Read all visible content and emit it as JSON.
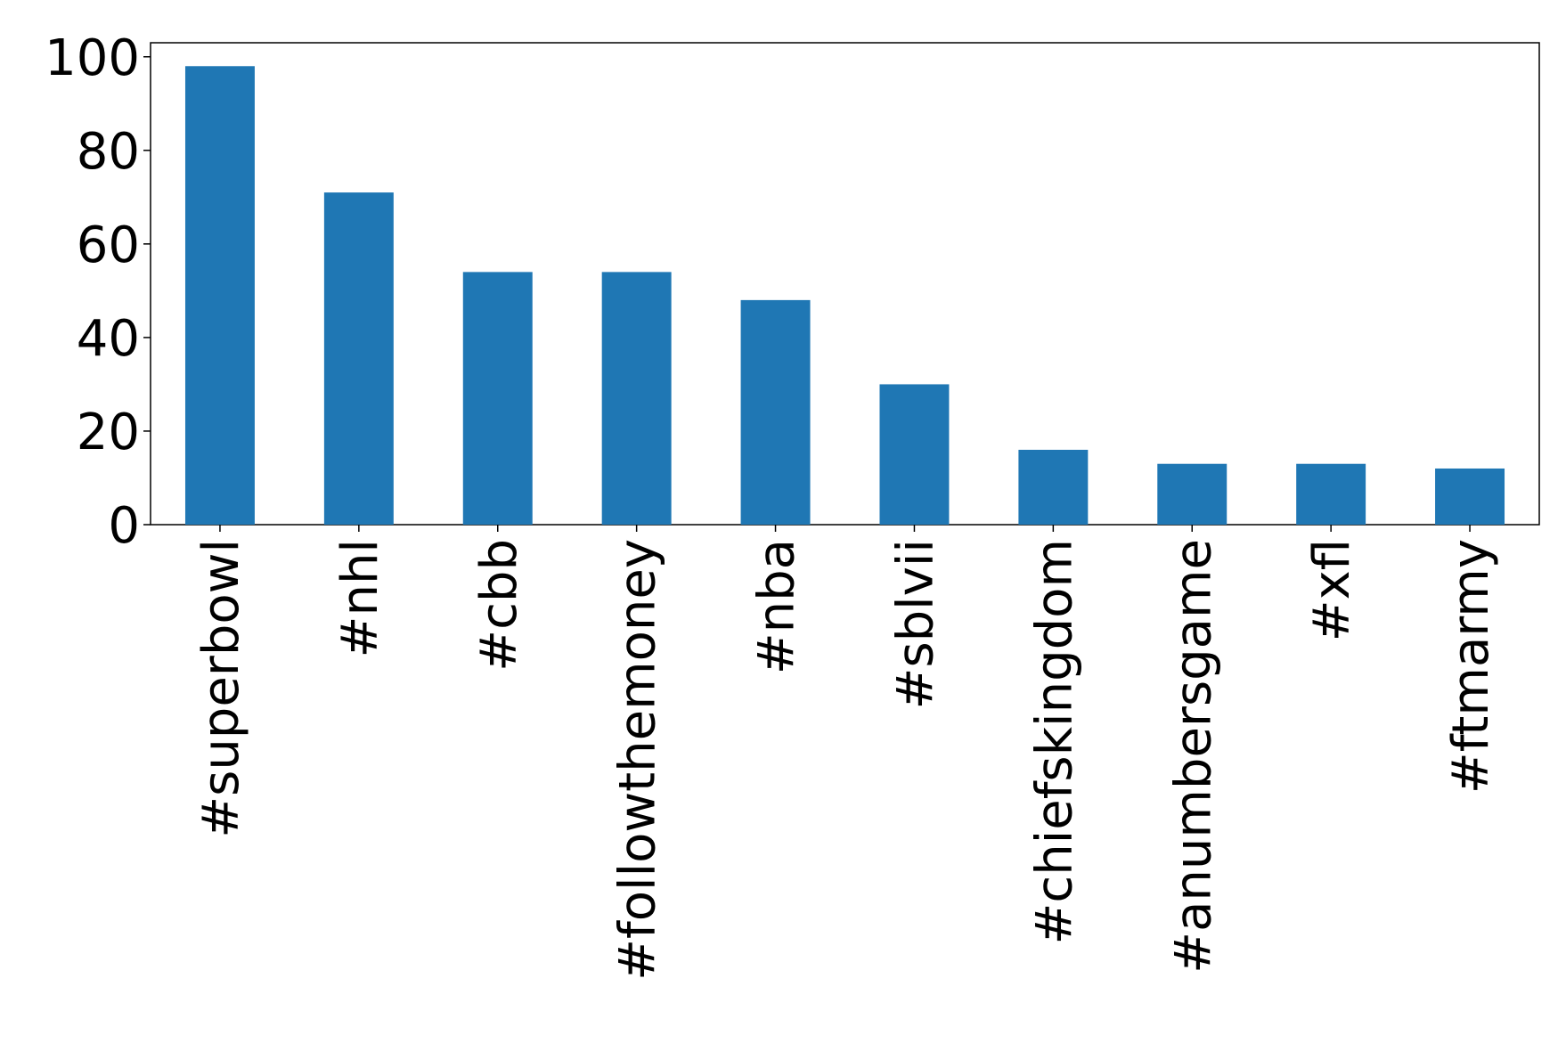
{
  "chart_data": {
    "type": "bar",
    "categories": [
      "#superbowl",
      "#nhl",
      "#cbb",
      "#followthemoney",
      "#nba",
      "#sblvii",
      "#chiefskingdom",
      "#anumbersgame",
      "#xfl",
      "#ftmarmy"
    ],
    "values": [
      98,
      71,
      54,
      54,
      48,
      30,
      16,
      13,
      13,
      12
    ],
    "color": "#1f77b4",
    "ylim": [
      0,
      103
    ],
    "yticks": [
      0,
      20,
      40,
      60,
      80,
      100
    ],
    "grid": false
  }
}
